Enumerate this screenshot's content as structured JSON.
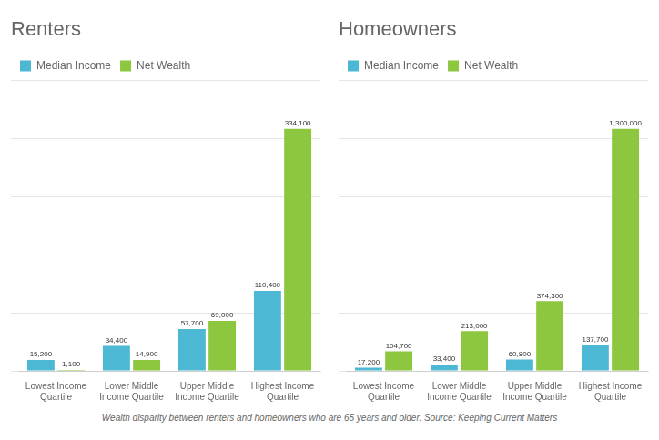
{
  "chart_data": [
    {
      "type": "bar",
      "title": "Renters",
      "categories": [
        "Lowest Income\nQuartile",
        "Lower Middle\nIncome Quartile",
        "Upper Middle\nIncome Quartile",
        "Highest Income\nQuartile"
      ],
      "series": [
        {
          "name": "Median Income",
          "color": "#4db8d4",
          "values": [
            15200,
            34400,
            57700,
            110400
          ],
          "value_labels": [
            "15,200",
            "34,400",
            "57,700",
            "110,400"
          ]
        },
        {
          "name": "Net Wealth",
          "color": "#8dc63f",
          "values": [
            1100,
            14900,
            69000,
            334100
          ],
          "value_labels": [
            "1,100",
            "14,900",
            "69,000",
            "334,100"
          ]
        }
      ],
      "ylim": [
        0,
        400920
      ],
      "yticks": [
        0,
        80184,
        160368,
        240552,
        320736,
        400920
      ],
      "grid": true,
      "legend": "top left",
      "data_labels": true,
      "tick_labels": "x"
    },
    {
      "type": "bar",
      "title": "Homeowners",
      "categories": [
        "Lowest Income\nQuartile",
        "Lower Middle\nIncome Quartile",
        "Upper Middle\nIncome Quartile",
        "Highest Income\nQuartile"
      ],
      "series": [
        {
          "name": "Median Income",
          "color": "#4db8d4",
          "values": [
            17200,
            33400,
            60800,
            137700
          ],
          "value_labels": [
            "17,200",
            "33,400",
            "60,800",
            "137,700"
          ]
        },
        {
          "name": "Net Wealth",
          "color": "#8dc63f",
          "values": [
            104700,
            213000,
            374300,
            1300000
          ],
          "value_labels": [
            "104,700",
            "213,000",
            "374,300",
            "1,300,000"
          ]
        }
      ],
      "ylim": [
        0,
        1560000
      ],
      "yticks": [
        0,
        312000,
        624000,
        936000,
        1248000,
        1560000
      ],
      "grid": true,
      "legend": "top left",
      "data_labels": true,
      "tick_labels": "x"
    }
  ],
  "footnote": "Wealth disparity between renters and homeowners who are 65 years and older. Source: Keeping Current Matters"
}
